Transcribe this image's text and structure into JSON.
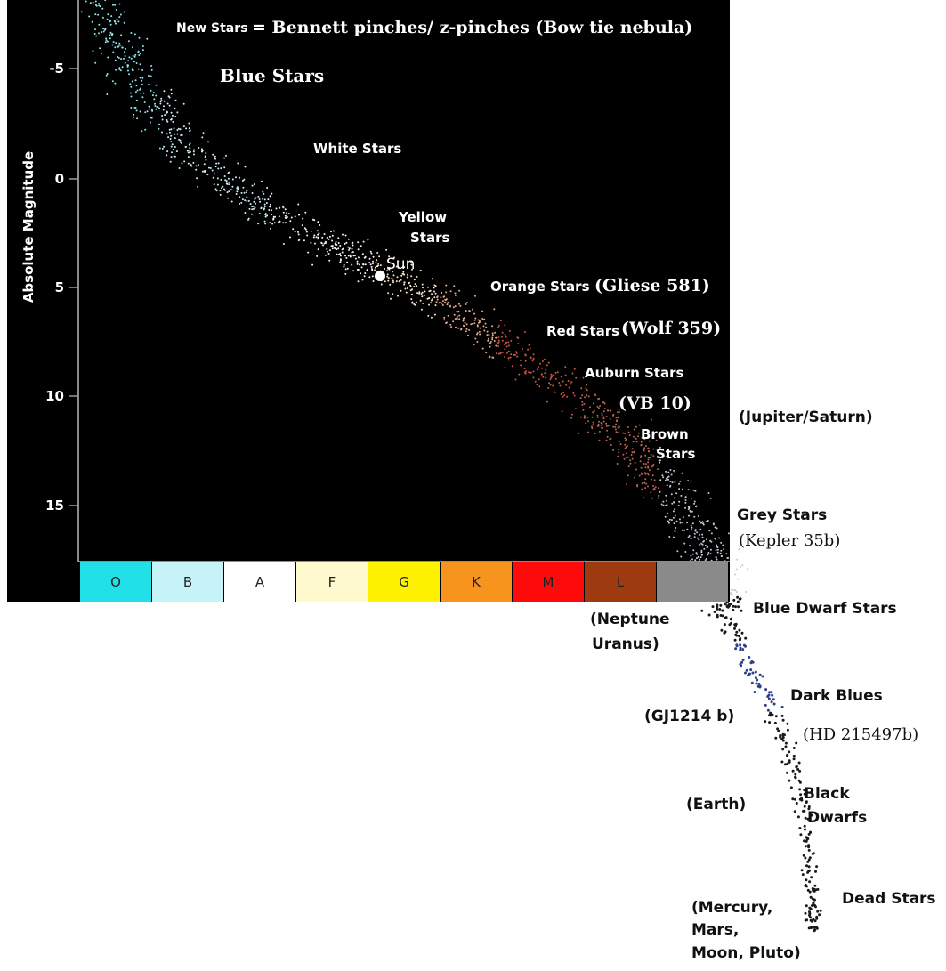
{
  "y_axis": {
    "title": "Absolute Magnitude",
    "ticks": [
      "-5",
      "0",
      "5",
      "10",
      "15"
    ]
  },
  "spectral_classes": [
    {
      "label": "O",
      "color": "#22e0e8"
    },
    {
      "label": "B",
      "color": "#c6f3f7"
    },
    {
      "label": "A",
      "color": "#ffffff"
    },
    {
      "label": "F",
      "color": "#fffacd"
    },
    {
      "label": "G",
      "color": "#fff200"
    },
    {
      "label": "K",
      "color": "#f7941d"
    },
    {
      "label": "M",
      "color": "#ff0a0a"
    },
    {
      "label": "L",
      "color": "#9e3a10"
    },
    {
      "label": "",
      "color": "#8a8a8a"
    }
  ],
  "labels": {
    "new_stars_a": "New Stars",
    "new_stars_b": "= Bennett pinches/ z-pinches (Bow tie nebula)",
    "blue_stars": "Blue Stars",
    "white_stars": "White Stars",
    "yellow_stars_1": "Yellow",
    "yellow_stars_2": "Stars",
    "sun": "Sun",
    "orange_stars": "Orange Stars",
    "gliese": "(Gliese 581)",
    "red_stars": "Red Stars",
    "wolf": "(Wolf 359)",
    "auburn_stars": "Auburn Stars",
    "vb10": "(VB 10)",
    "brown_1": "Brown",
    "brown_2": "Stars",
    "jupiter": "(Jupiter/Saturn)",
    "grey_stars": "Grey Stars",
    "kepler": "(Kepler 35b)",
    "blue_dwarf": "Blue Dwarf Stars",
    "neptune_1": "(Neptune",
    "neptune_2": "Uranus)",
    "dark_blues": "Dark Blues",
    "gj": "(GJ1214 b)",
    "hd": "(HD 215497b)",
    "black_1": "Black",
    "black_2": "Dwarfs",
    "earth": "(Earth)",
    "dead_stars": "Dead Stars",
    "mercury_1": "(Mercury,",
    "mercury_2": "Mars,",
    "mercury_3": "Moon, Pluto)"
  },
  "colors": {
    "plot_background": "#000000",
    "dark_star": "#1a1a1a",
    "blue_dwarf_star": "#2d3e8c"
  }
}
